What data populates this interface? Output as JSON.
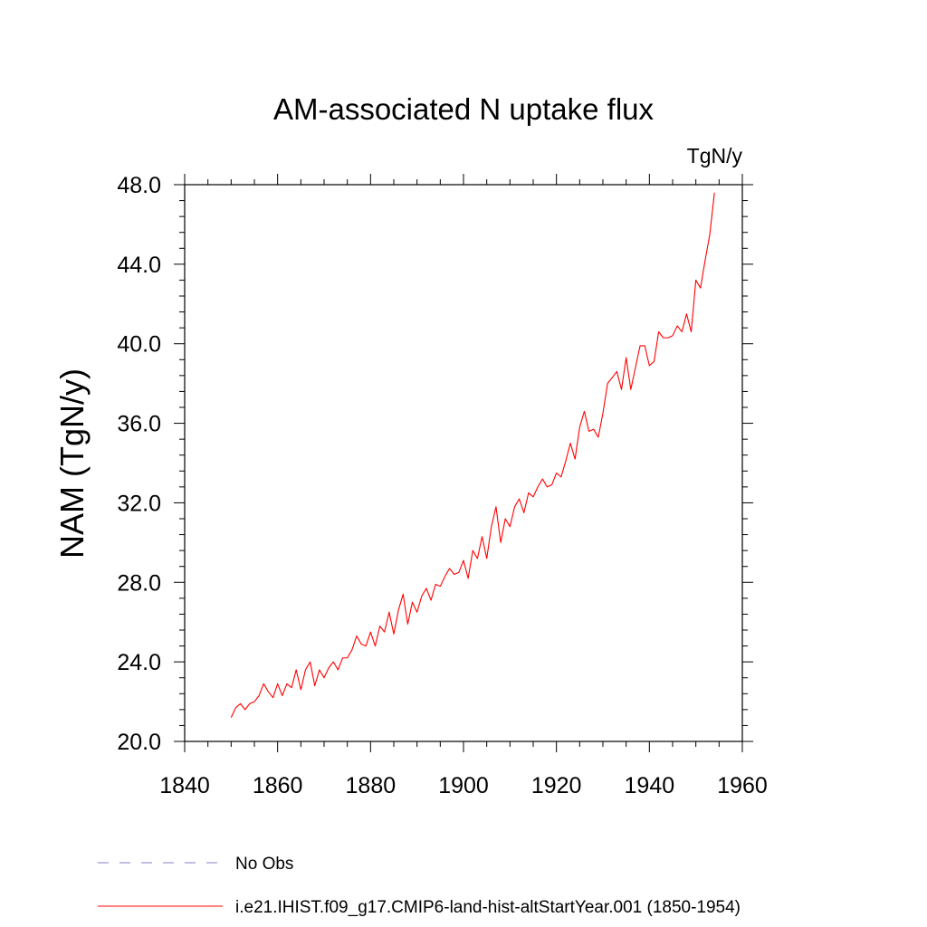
{
  "chart_data": {
    "type": "line",
    "title": "AM-associated N uptake flux",
    "units_label": "TgN/y",
    "ylabel": "NAM  (TgN/y)",
    "xlabel": "",
    "xlim": [
      1840,
      1960
    ],
    "ylim": [
      20.0,
      48.0
    ],
    "x_ticks": [
      1840,
      1860,
      1880,
      1900,
      1920,
      1940,
      1960
    ],
    "x_tick_labels": [
      "1840",
      "1860",
      "1880",
      "1900",
      "1920",
      "1940",
      "1960"
    ],
    "y_ticks": [
      20,
      24,
      28,
      32,
      36,
      40,
      44,
      48
    ],
    "y_tick_labels": [
      "20.0",
      "24.0",
      "28.0",
      "32.0",
      "36.0",
      "40.0",
      "44.0",
      "48.0"
    ],
    "grid": false,
    "legend_position": "bottom-left",
    "series": [
      {
        "name": "No Obs",
        "color": "#8a7fc4",
        "dash": "dashed",
        "x": [],
        "values": []
      },
      {
        "name": "i.e21.IHIST.f09_g17.CMIP6-land-hist-altStartYear.001 (1850-1954)",
        "color": "#ff0000",
        "dash": "solid",
        "x": [
          1850,
          1851,
          1852,
          1853,
          1854,
          1855,
          1856,
          1857,
          1858,
          1859,
          1860,
          1861,
          1862,
          1863,
          1864,
          1865,
          1866,
          1867,
          1868,
          1869,
          1870,
          1871,
          1872,
          1873,
          1874,
          1875,
          1876,
          1877,
          1878,
          1879,
          1880,
          1881,
          1882,
          1883,
          1884,
          1885,
          1886,
          1887,
          1888,
          1889,
          1890,
          1891,
          1892,
          1893,
          1894,
          1895,
          1896,
          1897,
          1898,
          1899,
          1900,
          1901,
          1902,
          1903,
          1904,
          1905,
          1906,
          1907,
          1908,
          1909,
          1910,
          1911,
          1912,
          1913,
          1914,
          1915,
          1916,
          1917,
          1918,
          1919,
          1920,
          1921,
          1922,
          1923,
          1924,
          1925,
          1926,
          1927,
          1928,
          1929,
          1930,
          1931,
          1932,
          1933,
          1934,
          1935,
          1936,
          1937,
          1938,
          1939,
          1940,
          1941,
          1942,
          1943,
          1944,
          1945,
          1946,
          1947,
          1948,
          1949,
          1950,
          1951,
          1952,
          1953,
          1954
        ],
        "values": [
          21.2,
          21.7,
          21.9,
          21.6,
          21.9,
          22.0,
          22.3,
          22.9,
          22.5,
          22.2,
          22.9,
          22.3,
          22.9,
          22.7,
          23.6,
          22.6,
          23.6,
          24.0,
          22.8,
          23.6,
          23.2,
          23.7,
          24.0,
          23.6,
          24.2,
          24.2,
          24.6,
          25.3,
          24.9,
          24.8,
          25.5,
          24.8,
          25.8,
          25.5,
          26.5,
          25.4,
          26.6,
          27.4,
          25.9,
          27.0,
          26.5,
          27.3,
          27.7,
          27.1,
          27.9,
          27.8,
          28.3,
          28.7,
          28.4,
          28.5,
          29.1,
          28.2,
          29.6,
          29.2,
          30.3,
          29.2,
          30.8,
          31.8,
          30.0,
          31.2,
          30.8,
          31.8,
          32.2,
          31.5,
          32.5,
          32.3,
          32.8,
          33.2,
          32.8,
          32.9,
          33.5,
          33.3,
          34.1,
          35.0,
          34.2,
          35.8,
          36.6,
          35.6,
          35.7,
          35.3,
          36.5,
          38.0,
          38.3,
          38.6,
          37.7,
          39.3,
          37.7,
          38.8,
          39.9,
          39.9,
          38.9,
          39.1,
          40.6,
          40.3,
          40.3,
          40.4,
          40.9,
          40.6,
          41.5,
          40.6,
          43.2,
          42.8,
          44.2,
          45.5,
          47.6
        ]
      }
    ]
  }
}
